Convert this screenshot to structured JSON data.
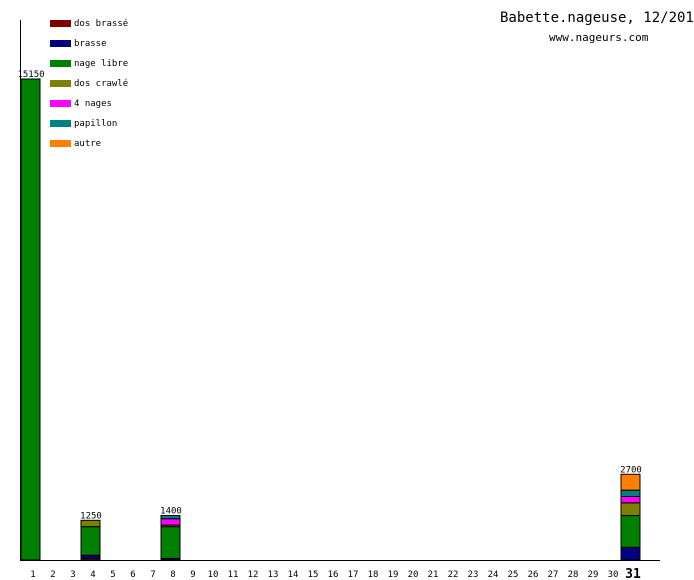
{
  "chart_data": {
    "type": "bar",
    "stacked": true,
    "title": "Babette.nageuse, 12/201",
    "subtitle": "www.nageurs.com",
    "xlabel": "",
    "ylabel": "",
    "categories": [
      "1",
      "2",
      "3",
      "4",
      "5",
      "6",
      "7",
      "8",
      "9",
      "10",
      "11",
      "12",
      "13",
      "14",
      "15",
      "16",
      "17",
      "18",
      "19",
      "20",
      "21",
      "22",
      "23",
      "24",
      "25",
      "26",
      "27",
      "28",
      "29",
      "30",
      "31"
    ],
    "highlight_category": "31",
    "ylim": [
      0,
      15150
    ],
    "series": [
      {
        "name": "dos brassé",
        "color": "#800000",
        "values": {
          "4": 50
        }
      },
      {
        "name": "brasse",
        "color": "#000080",
        "values": {
          "4": 100,
          "8": 50,
          "31": 400
        }
      },
      {
        "name": "nage libre",
        "color": "#008000",
        "values": {
          "1": 15150,
          "4": 900,
          "8": 1000,
          "31": 1000
        }
      },
      {
        "name": "dos crawlé",
        "color": "#808000",
        "values": {
          "4": 200,
          "8": 50,
          "31": 400
        }
      },
      {
        "name": "4 nages",
        "color": "#ff00ff",
        "values": {
          "8": 200,
          "31": 200
        }
      },
      {
        "name": "papillon",
        "color": "#008080",
        "values": {
          "8": 100,
          "31": 200
        }
      },
      {
        "name": "autre",
        "color": "#ff8000",
        "values": {
          "31": 500
        }
      }
    ],
    "totals": {
      "1": "15150",
      "4": "1250",
      "8": "1400",
      "31": "2700"
    }
  }
}
